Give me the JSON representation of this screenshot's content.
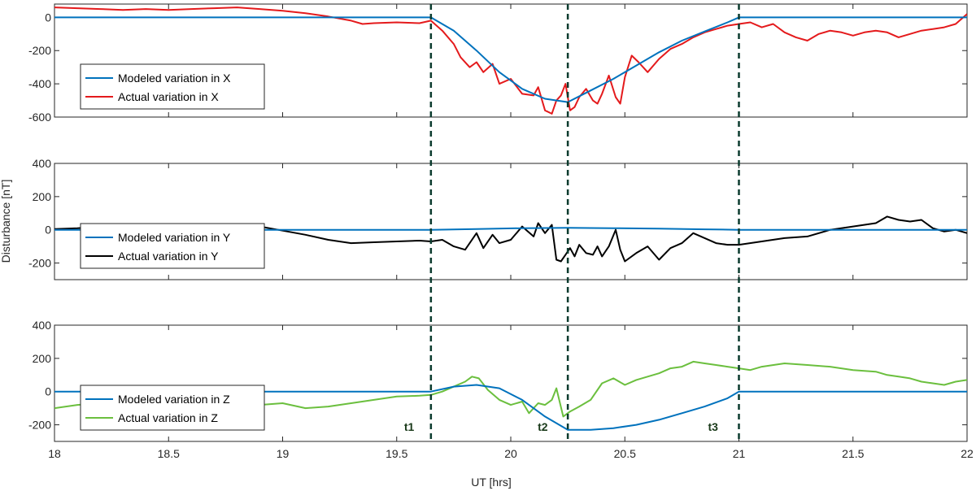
{
  "figure": {
    "ylabel": "Disturbance [nT]",
    "xlabel": "UT [hrs]",
    "x_ticks": [
      "18",
      "18.5",
      "19",
      "19.5",
      "20",
      "20.5",
      "21",
      "21.5",
      "22"
    ],
    "event_labels": [
      "t1",
      "t2",
      "t3"
    ]
  },
  "colors": {
    "modeled": "#0072BD",
    "actual_x": "#E41A1C",
    "actual_y": "#000000",
    "actual_z": "#6BBF3E",
    "event_line": "#0B3B2E",
    "axes": "#262626"
  },
  "chart_data": [
    {
      "type": "line",
      "component": "X",
      "xlim": [
        18,
        22
      ],
      "ylim": [
        -600,
        80
      ],
      "y_ticks": [
        "0",
        "-200",
        "-400",
        "-600"
      ],
      "legend": {
        "location": "left",
        "entries": [
          "Modeled variation in X",
          "Actual variation in X"
        ]
      },
      "series": [
        {
          "name": "Modeled variation in X",
          "color": "modeled",
          "x": [
            18,
            19.65,
            19.75,
            19.85,
            19.95,
            20.05,
            20.15,
            20.25,
            20.35,
            20.45,
            20.55,
            20.65,
            20.75,
            20.85,
            20.95,
            21.0,
            22
          ],
          "y": [
            0,
            0,
            -80,
            -200,
            -330,
            -430,
            -490,
            -510,
            -440,
            -370,
            -290,
            -210,
            -140,
            -85,
            -30,
            0,
            0
          ]
        },
        {
          "name": "Actual variation in X",
          "color": "actual_x",
          "x": [
            18,
            18.1,
            18.2,
            18.3,
            18.4,
            18.5,
            18.6,
            18.7,
            18.8,
            18.9,
            19.0,
            19.1,
            19.2,
            19.3,
            19.35,
            19.4,
            19.5,
            19.6,
            19.65,
            19.7,
            19.75,
            19.78,
            19.82,
            19.85,
            19.88,
            19.92,
            19.95,
            20.0,
            20.05,
            20.1,
            20.12,
            20.15,
            20.18,
            20.2,
            20.22,
            20.24,
            20.26,
            20.28,
            20.3,
            20.33,
            20.36,
            20.38,
            20.4,
            20.43,
            20.46,
            20.48,
            20.5,
            20.53,
            20.56,
            20.6,
            20.65,
            20.7,
            20.75,
            20.8,
            20.85,
            20.9,
            20.95,
            21.0,
            21.05,
            21.1,
            21.15,
            21.2,
            21.25,
            21.3,
            21.35,
            21.4,
            21.45,
            21.5,
            21.55,
            21.6,
            21.65,
            21.7,
            21.75,
            21.8,
            21.85,
            21.9,
            21.95,
            22.0
          ],
          "y": [
            60,
            55,
            50,
            45,
            50,
            45,
            50,
            55,
            60,
            50,
            40,
            25,
            5,
            -20,
            -40,
            -35,
            -30,
            -35,
            -20,
            -80,
            -160,
            -240,
            -300,
            -270,
            -330,
            -280,
            -400,
            -370,
            -460,
            -470,
            -420,
            -560,
            -580,
            -500,
            -470,
            -400,
            -560,
            -540,
            -480,
            -430,
            -500,
            -520,
            -460,
            -350,
            -480,
            -520,
            -360,
            -230,
            -270,
            -330,
            -250,
            -190,
            -160,
            -120,
            -90,
            -70,
            -50,
            -40,
            -30,
            -60,
            -40,
            -90,
            -120,
            -140,
            -100,
            -80,
            -90,
            -110,
            -90,
            -80,
            -90,
            -120,
            -100,
            -80,
            -70,
            -60,
            -40,
            20
          ]
        }
      ]
    },
    {
      "type": "line",
      "component": "Y",
      "xlim": [
        18,
        22
      ],
      "ylim": [
        -300,
        400
      ],
      "y_ticks": [
        "400",
        "200",
        "0",
        "-200"
      ],
      "legend": {
        "location": "left",
        "entries": [
          "Modeled variation in Y",
          "Actual variation in Y"
        ]
      },
      "series": [
        {
          "name": "Modeled variation in Y",
          "color": "modeled",
          "x": [
            18,
            19.65,
            19.85,
            20.05,
            20.25,
            20.45,
            20.65,
            20.85,
            21.0,
            22
          ],
          "y": [
            0,
            0,
            5,
            10,
            12,
            10,
            7,
            3,
            0,
            0
          ]
        },
        {
          "name": "Actual variation in Y",
          "color": "actual_y",
          "x": [
            18,
            18.1,
            18.2,
            18.3,
            18.4,
            18.5,
            18.6,
            18.7,
            18.8,
            18.9,
            19.0,
            19.1,
            19.2,
            19.3,
            19.4,
            19.5,
            19.6,
            19.65,
            19.7,
            19.75,
            19.8,
            19.85,
            19.88,
            19.92,
            19.95,
            20.0,
            20.05,
            20.1,
            20.12,
            20.15,
            20.18,
            20.2,
            20.22,
            20.24,
            20.26,
            20.28,
            20.3,
            20.33,
            20.36,
            20.38,
            20.4,
            20.43,
            20.46,
            20.48,
            20.5,
            20.55,
            20.6,
            20.65,
            20.7,
            20.75,
            20.8,
            20.85,
            20.9,
            20.95,
            21.0,
            21.1,
            21.2,
            21.3,
            21.4,
            21.5,
            21.6,
            21.65,
            21.7,
            21.75,
            21.8,
            21.85,
            21.9,
            21.95,
            22.0
          ],
          "y": [
            5,
            10,
            20,
            15,
            20,
            25,
            30,
            35,
            30,
            20,
            -5,
            -30,
            -60,
            -80,
            -75,
            -70,
            -65,
            -70,
            -60,
            -100,
            -120,
            -20,
            -110,
            -30,
            -80,
            -60,
            20,
            -40,
            40,
            -20,
            30,
            -180,
            -190,
            -150,
            -110,
            -160,
            -90,
            -140,
            -150,
            -100,
            -160,
            -100,
            0,
            -120,
            -190,
            -140,
            -100,
            -180,
            -110,
            -80,
            -20,
            -50,
            -80,
            -90,
            -90,
            -70,
            -50,
            -40,
            0,
            20,
            40,
            80,
            60,
            50,
            60,
            10,
            -10,
            0,
            -20
          ]
        }
      ]
    },
    {
      "type": "line",
      "component": "Z",
      "xlim": [
        18,
        22
      ],
      "ylim": [
        -300,
        400
      ],
      "y_ticks": [
        "400",
        "200",
        "0",
        "-200"
      ],
      "legend": {
        "location": "left",
        "entries": [
          "Modeled variation in Z",
          "Actual variation in Z"
        ]
      },
      "series": [
        {
          "name": "Modeled variation in Z",
          "color": "modeled",
          "x": [
            18,
            19.65,
            19.75,
            19.85,
            19.95,
            20.05,
            20.15,
            20.25,
            20.35,
            20.45,
            20.55,
            20.65,
            20.75,
            20.85,
            20.95,
            21.0,
            22
          ],
          "y": [
            0,
            0,
            30,
            40,
            20,
            -50,
            -150,
            -230,
            -230,
            -220,
            -200,
            -170,
            -130,
            -90,
            -40,
            0,
            0
          ]
        },
        {
          "name": "Actual variation in Z",
          "color": "actual_z",
          "x": [
            18,
            18.1,
            18.2,
            18.3,
            18.4,
            18.5,
            18.6,
            18.7,
            18.8,
            18.9,
            19.0,
            19.1,
            19.2,
            19.3,
            19.4,
            19.5,
            19.6,
            19.65,
            19.7,
            19.75,
            19.8,
            19.83,
            19.86,
            19.9,
            19.95,
            20.0,
            20.05,
            20.08,
            20.12,
            20.15,
            20.18,
            20.2,
            20.23,
            20.26,
            20.3,
            20.35,
            20.4,
            20.45,
            20.5,
            20.55,
            20.6,
            20.65,
            20.7,
            20.75,
            20.8,
            20.85,
            20.9,
            20.95,
            21.0,
            21.05,
            21.1,
            21.2,
            21.3,
            21.4,
            21.5,
            21.6,
            21.65,
            21.7,
            21.75,
            21.8,
            21.85,
            21.9,
            21.95,
            22.0
          ],
          "y": [
            -100,
            -80,
            -70,
            -65,
            -75,
            -75,
            -70,
            -60,
            -70,
            -80,
            -70,
            -100,
            -90,
            -70,
            -50,
            -30,
            -25,
            -20,
            0,
            30,
            60,
            90,
            80,
            10,
            -50,
            -80,
            -60,
            -130,
            -70,
            -80,
            -50,
            20,
            -150,
            -120,
            -90,
            -50,
            50,
            80,
            40,
            70,
            90,
            110,
            140,
            150,
            180,
            170,
            160,
            150,
            140,
            130,
            150,
            170,
            160,
            150,
            130,
            120,
            100,
            90,
            80,
            60,
            50,
            40,
            60,
            70
          ]
        }
      ]
    }
  ],
  "event_markers": [
    {
      "label": "t1",
      "x": 19.65
    },
    {
      "label": "t2",
      "x": 20.25
    },
    {
      "label": "t3",
      "x": 21.0
    }
  ]
}
